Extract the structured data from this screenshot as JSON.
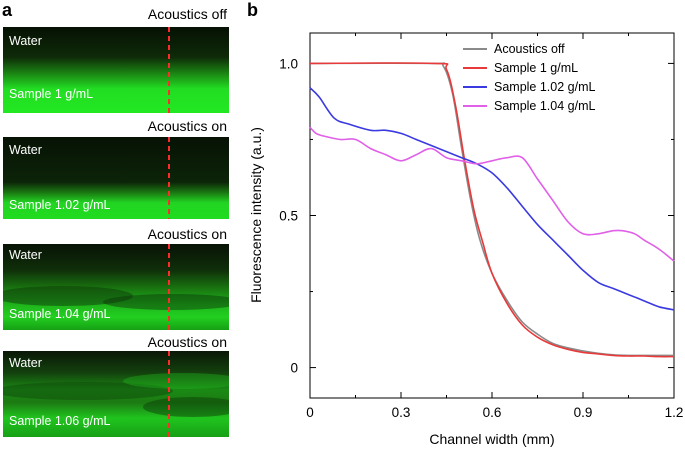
{
  "panel_a": {
    "letter": "a",
    "panels": [
      {
        "caption": "Acoustics off",
        "top_label": "Water",
        "bottom_label": "Sample 1 g/mL"
      },
      {
        "caption": "Acoustics on",
        "top_label": "Water",
        "bottom_label": "Sample 1.02 g/mL"
      },
      {
        "caption": "Acoustics on",
        "top_label": "Water",
        "bottom_label": "Sample 1.04 g/mL"
      },
      {
        "caption": "Acoustics on",
        "top_label": "Water",
        "bottom_label": "Sample 1.06 g/mL"
      }
    ],
    "colors": {
      "fluor": "#22dd22",
      "dark": "#0a1a06",
      "marker": "#ff2a2a"
    }
  },
  "panel_b": {
    "letter": "b"
  },
  "chart_data": {
    "type": "line",
    "title": "",
    "xlabel": "Channel width (mm)",
    "ylabel": "Fluorescence intensity (a.u.)",
    "xlim": [
      0,
      1.2
    ],
    "ylim": [
      -0.1,
      1.1
    ],
    "xticks": [
      0,
      0.3,
      0.6,
      0.9,
      1.2
    ],
    "xtick_labels": [
      "0",
      "0.3",
      "0.6",
      "0.9",
      "1.2"
    ],
    "yticks": [
      0,
      0.5,
      1.0
    ],
    "ytick_labels": [
      "0",
      "0.5",
      "1.0"
    ],
    "legend_position": "top-right",
    "grid": false,
    "series": [
      {
        "name": "Acoustics off",
        "color": "#8a8a8a",
        "x": [
          0,
          0.4,
          0.44,
          0.47,
          0.5,
          0.53,
          0.56,
          0.6,
          0.65,
          0.7,
          0.75,
          0.8,
          0.85,
          0.9,
          0.95,
          1.0,
          1.05,
          1.1,
          1.15,
          1.2
        ],
        "y": [
          1.0,
          1.0,
          0.99,
          0.9,
          0.72,
          0.55,
          0.42,
          0.31,
          0.22,
          0.15,
          0.11,
          0.08,
          0.065,
          0.055,
          0.047,
          0.042,
          0.04,
          0.04,
          0.04,
          0.04
        ]
      },
      {
        "name": "Sample 1 g/mL",
        "color": "#e83a3a",
        "x": [
          0,
          0.41,
          0.45,
          0.48,
          0.51,
          0.54,
          0.57,
          0.6,
          0.65,
          0.7,
          0.75,
          0.8,
          0.85,
          0.9,
          0.95,
          1.0,
          1.05,
          1.1,
          1.15,
          1.2
        ],
        "y": [
          1.0,
          1.0,
          0.98,
          0.86,
          0.68,
          0.52,
          0.41,
          0.31,
          0.21,
          0.14,
          0.1,
          0.075,
          0.06,
          0.05,
          0.045,
          0.04,
          0.038,
          0.038,
          0.036,
          0.036
        ]
      },
      {
        "name": "Sample 1.02 g/mL",
        "color": "#3a3ae0",
        "x": [
          0,
          0.03,
          0.08,
          0.13,
          0.2,
          0.25,
          0.3,
          0.35,
          0.4,
          0.45,
          0.5,
          0.55,
          0.6,
          0.65,
          0.7,
          0.75,
          0.8,
          0.85,
          0.9,
          0.95,
          1.0,
          1.05,
          1.1,
          1.15,
          1.2
        ],
        "y": [
          0.92,
          0.89,
          0.82,
          0.8,
          0.78,
          0.78,
          0.77,
          0.75,
          0.73,
          0.71,
          0.69,
          0.67,
          0.64,
          0.59,
          0.53,
          0.47,
          0.42,
          0.37,
          0.32,
          0.28,
          0.26,
          0.24,
          0.22,
          0.2,
          0.19
        ]
      },
      {
        "name": "Sample 1.04 g/mL",
        "color": "#e060e8",
        "x": [
          0,
          0.02,
          0.05,
          0.1,
          0.15,
          0.2,
          0.25,
          0.3,
          0.35,
          0.4,
          0.45,
          0.5,
          0.55,
          0.6,
          0.65,
          0.7,
          0.75,
          0.8,
          0.85,
          0.9,
          0.95,
          1.0,
          1.03,
          1.07,
          1.1,
          1.15,
          1.2
        ],
        "y": [
          0.79,
          0.77,
          0.76,
          0.75,
          0.75,
          0.72,
          0.7,
          0.68,
          0.7,
          0.72,
          0.69,
          0.68,
          0.67,
          0.68,
          0.69,
          0.69,
          0.62,
          0.55,
          0.48,
          0.44,
          0.44,
          0.45,
          0.45,
          0.44,
          0.42,
          0.39,
          0.35
        ]
      }
    ]
  }
}
